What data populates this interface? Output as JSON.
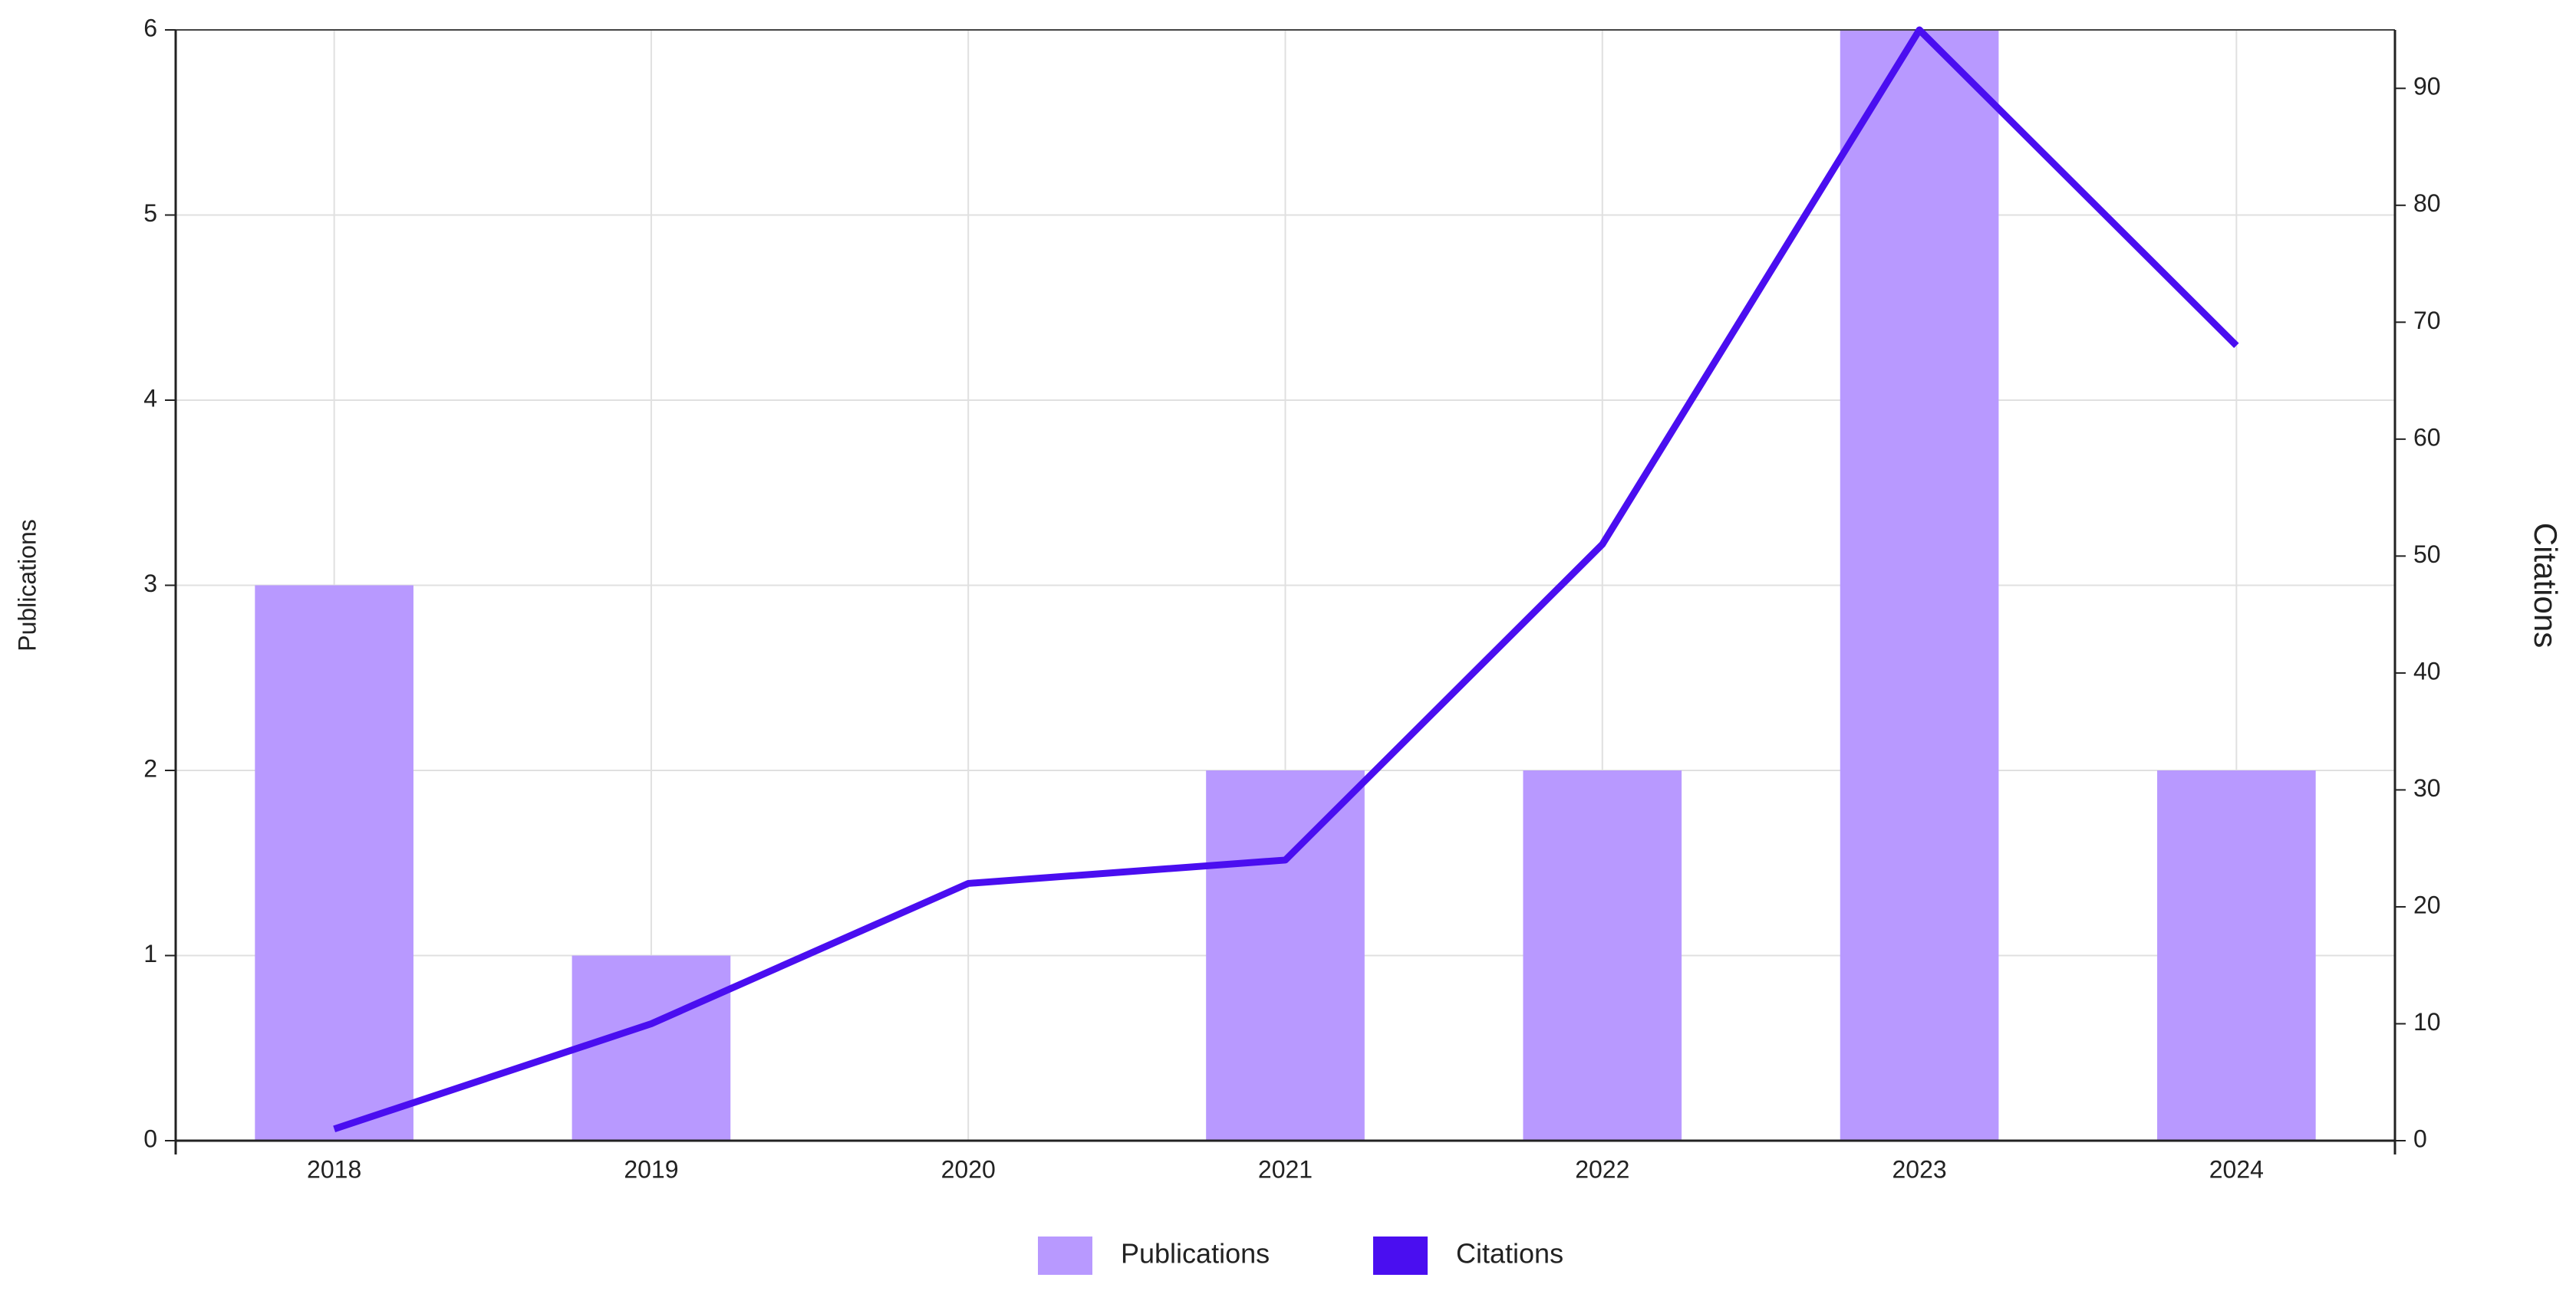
{
  "chart_data": {
    "type": "bar-line",
    "categories": [
      "2018",
      "2019",
      "2020",
      "2021",
      "2022",
      "2023",
      "2024"
    ],
    "series": [
      {
        "name": "Publications",
        "type": "bar",
        "color": "#b899ff",
        "values": [
          3,
          1,
          0,
          2,
          2,
          6,
          2
        ]
      },
      {
        "name": "Citations",
        "type": "line",
        "color": "#4a0ef0",
        "axis": "y2",
        "values": [
          1,
          10,
          22,
          24,
          51,
          95,
          68
        ]
      }
    ],
    "y_label": "Publications",
    "y2_label": "Citations",
    "ylim": [
      0,
      6
    ],
    "yticks": [
      0,
      1,
      2,
      3,
      4,
      5,
      6
    ],
    "y2lim": [
      0,
      95
    ],
    "y2ticks": [
      0,
      10,
      20,
      30,
      40,
      50,
      60,
      70,
      80,
      90
    ],
    "grid": true,
    "legend": "bottom"
  }
}
